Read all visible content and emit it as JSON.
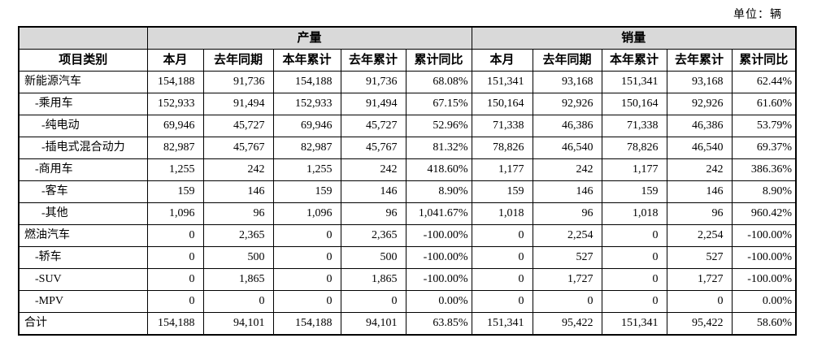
{
  "unit_label": "单位：辆",
  "colors": {
    "header_bg": "#d9d9d9",
    "border": "#000000",
    "text": "#000000",
    "page_bg": "#ffffff"
  },
  "table": {
    "corner_header": "项目类别",
    "groups": [
      {
        "label": "产量"
      },
      {
        "label": "销量"
      }
    ],
    "sub_headers": [
      "本月",
      "去年同期",
      "本年累计",
      "去年累计",
      "累计同比"
    ],
    "rows": [
      {
        "category": "新能源汽车",
        "indent": 0,
        "production": [
          "154,188",
          "91,736",
          "154,188",
          "91,736",
          "68.08%"
        ],
        "sales": [
          "151,341",
          "93,168",
          "151,341",
          "93,168",
          "62.44%"
        ]
      },
      {
        "category": "-乘用车",
        "indent": 1,
        "production": [
          "152,933",
          "91,494",
          "152,933",
          "91,494",
          "67.15%"
        ],
        "sales": [
          "150,164",
          "92,926",
          "150,164",
          "92,926",
          "61.60%"
        ]
      },
      {
        "category": "-纯电动",
        "indent": 2,
        "production": [
          "69,946",
          "45,727",
          "69,946",
          "45,727",
          "52.96%"
        ],
        "sales": [
          "71,338",
          "46,386",
          "71,338",
          "46,386",
          "53.79%"
        ]
      },
      {
        "category": "-插电式混合动力",
        "indent": 2,
        "production": [
          "82,987",
          "45,767",
          "82,987",
          "45,767",
          "81.32%"
        ],
        "sales": [
          "78,826",
          "46,540",
          "78,826",
          "46,540",
          "69.37%"
        ]
      },
      {
        "category": "-商用车",
        "indent": 1,
        "production": [
          "1,255",
          "242",
          "1,255",
          "242",
          "418.60%"
        ],
        "sales": [
          "1,177",
          "242",
          "1,177",
          "242",
          "386.36%"
        ]
      },
      {
        "category": "-客车",
        "indent": 2,
        "production": [
          "159",
          "146",
          "159",
          "146",
          "8.90%"
        ],
        "sales": [
          "159",
          "146",
          "159",
          "146",
          "8.90%"
        ]
      },
      {
        "category": "-其他",
        "indent": 2,
        "production": [
          "1,096",
          "96",
          "1,096",
          "96",
          "1,041.67%"
        ],
        "sales": [
          "1,018",
          "96",
          "1,018",
          "96",
          "960.42%"
        ]
      },
      {
        "category": "燃油汽车",
        "indent": 0,
        "production": [
          "0",
          "2,365",
          "0",
          "2,365",
          "-100.00%"
        ],
        "sales": [
          "0",
          "2,254",
          "0",
          "2,254",
          "-100.00%"
        ]
      },
      {
        "category": "-轿车",
        "indent": 1,
        "production": [
          "0",
          "500",
          "0",
          "500",
          "-100.00%"
        ],
        "sales": [
          "0",
          "527",
          "0",
          "527",
          "-100.00%"
        ]
      },
      {
        "category": "-SUV",
        "indent": 1,
        "production": [
          "0",
          "1,865",
          "0",
          "1,865",
          "-100.00%"
        ],
        "sales": [
          "0",
          "1,727",
          "0",
          "1,727",
          "-100.00%"
        ]
      },
      {
        "category": "-MPV",
        "indent": 1,
        "production": [
          "0",
          "0",
          "0",
          "0",
          "0.00%"
        ],
        "sales": [
          "0",
          "0",
          "0",
          "0",
          "0.00%"
        ]
      },
      {
        "category": "合计",
        "indent": 0,
        "production": [
          "154,188",
          "94,101",
          "154,188",
          "94,101",
          "63.85%"
        ],
        "sales": [
          "151,341",
          "95,422",
          "151,341",
          "95,422",
          "58.60%"
        ]
      }
    ]
  }
}
